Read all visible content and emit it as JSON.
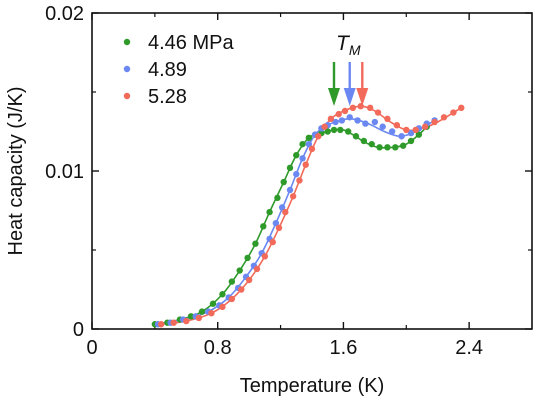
{
  "chart_data": {
    "type": "scatter",
    "xlabel": "Temperature (K)",
    "ylabel": "Heat capacity (J/K)",
    "xlim": [
      0,
      2.8
    ],
    "ylim": [
      0,
      0.02
    ],
    "x_ticks": [
      0,
      0.8,
      1.6,
      2.4
    ],
    "x_tick_labels": [
      "0",
      "0.8",
      "1.6",
      "2.4"
    ],
    "y_ticks": [
      0,
      0.01,
      0.02
    ],
    "y_tick_labels": [
      "0",
      "0.01",
      "0.02"
    ],
    "grid": false,
    "legend_position": "top-left",
    "annotation": {
      "main": "T",
      "sub": "M"
    },
    "series": [
      {
        "name": "4.46 MPa",
        "color": "#2e9a2a",
        "x": [
          0.4,
          0.48,
          0.56,
          0.63,
          0.7,
          0.77,
          0.83,
          0.89,
          0.94,
          0.99,
          1.04,
          1.09,
          1.13,
          1.18,
          1.22,
          1.26,
          1.3,
          1.34,
          1.38,
          1.42,
          1.46,
          1.5,
          1.54,
          1.58,
          1.63,
          1.68,
          1.73,
          1.78,
          1.83,
          1.88,
          1.93,
          1.98,
          2.03,
          2.08,
          2.13
        ],
        "y": [
          0.0003,
          0.0004,
          0.0006,
          0.0008,
          0.0011,
          0.0016,
          0.0022,
          0.003,
          0.0037,
          0.0045,
          0.0054,
          0.0065,
          0.0074,
          0.0083,
          0.0093,
          0.0102,
          0.011,
          0.0117,
          0.0121,
          0.0123,
          0.0124,
          0.0125,
          0.0126,
          0.0126,
          0.0125,
          0.0122,
          0.0119,
          0.0117,
          0.0115,
          0.0115,
          0.0115,
          0.0116,
          0.0119,
          0.0123,
          0.0128
        ],
        "fit_x": [
          0.4,
          0.56,
          0.7,
          0.83,
          0.94,
          1.04,
          1.13,
          1.22,
          1.3,
          1.38,
          1.46,
          1.54,
          1.6,
          1.66,
          1.74,
          1.82,
          1.92,
          2.0,
          2.08,
          2.13
        ],
        "fit_y": [
          0.0003,
          0.0006,
          0.0011,
          0.0022,
          0.0037,
          0.0054,
          0.0074,
          0.0093,
          0.011,
          0.0121,
          0.0124,
          0.0126,
          0.0126,
          0.0123,
          0.0118,
          0.0115,
          0.0115,
          0.0117,
          0.0123,
          0.0128
        ],
        "arrow_x": 1.54
      },
      {
        "name": "4.89",
        "color": "#6b88f2",
        "x": [
          0.42,
          0.5,
          0.58,
          0.66,
          0.74,
          0.81,
          0.87,
          0.93,
          0.98,
          1.03,
          1.08,
          1.13,
          1.17,
          1.21,
          1.26,
          1.3,
          1.34,
          1.38,
          1.42,
          1.46,
          1.5,
          1.55,
          1.59,
          1.64,
          1.69,
          1.74,
          1.8,
          1.85,
          1.91,
          1.97,
          2.03,
          2.08,
          2.13,
          2.18
        ],
        "y": [
          0.0003,
          0.0004,
          0.0006,
          0.0008,
          0.0011,
          0.0015,
          0.002,
          0.0026,
          0.0033,
          0.004,
          0.0048,
          0.0057,
          0.0067,
          0.0077,
          0.0088,
          0.0098,
          0.0108,
          0.0117,
          0.0123,
          0.0127,
          0.0129,
          0.0131,
          0.0132,
          0.0134,
          0.0132,
          0.013,
          0.0131,
          0.0128,
          0.0125,
          0.0122,
          0.0124,
          0.0127,
          0.013,
          0.0132
        ],
        "fit_x": [
          0.42,
          0.58,
          0.74,
          0.87,
          0.98,
          1.08,
          1.17,
          1.26,
          1.34,
          1.42,
          1.5,
          1.58,
          1.64,
          1.7,
          1.78,
          1.86,
          1.96,
          2.06,
          2.18
        ],
        "fit_y": [
          0.0003,
          0.0006,
          0.0011,
          0.002,
          0.0033,
          0.0048,
          0.0067,
          0.0088,
          0.0108,
          0.0123,
          0.0129,
          0.0132,
          0.0133,
          0.0132,
          0.0129,
          0.0125,
          0.0122,
          0.0125,
          0.0132
        ],
        "arrow_x": 1.64
      },
      {
        "name": "5.28",
        "color": "#f26a5a",
        "x": [
          0.44,
          0.52,
          0.6,
          0.68,
          0.76,
          0.83,
          0.89,
          0.95,
          1.0,
          1.05,
          1.1,
          1.15,
          1.19,
          1.23,
          1.28,
          1.32,
          1.36,
          1.4,
          1.44,
          1.48,
          1.52,
          1.57,
          1.61,
          1.66,
          1.71,
          1.77,
          1.82,
          1.88,
          1.94,
          2.0,
          2.06,
          2.12,
          2.18,
          2.24,
          2.3,
          2.35
        ],
        "y": [
          0.0003,
          0.0004,
          0.0005,
          0.0007,
          0.001,
          0.0014,
          0.0019,
          0.0025,
          0.0031,
          0.0038,
          0.0046,
          0.0055,
          0.0064,
          0.0074,
          0.0084,
          0.0094,
          0.0104,
          0.0114,
          0.0122,
          0.0128,
          0.0133,
          0.0136,
          0.0138,
          0.014,
          0.0141,
          0.014,
          0.0137,
          0.0133,
          0.0129,
          0.0126,
          0.0126,
          0.0128,
          0.0131,
          0.0134,
          0.0137,
          0.014
        ],
        "fit_x": [
          0.44,
          0.6,
          0.76,
          0.89,
          1.0,
          1.1,
          1.19,
          1.28,
          1.36,
          1.44,
          1.52,
          1.6,
          1.66,
          1.72,
          1.8,
          1.9,
          2.0,
          2.1,
          2.2,
          2.35
        ],
        "fit_y": [
          0.0003,
          0.0005,
          0.001,
          0.0019,
          0.0031,
          0.0046,
          0.0064,
          0.0084,
          0.0104,
          0.0122,
          0.0133,
          0.0138,
          0.014,
          0.0141,
          0.0138,
          0.0131,
          0.0126,
          0.0127,
          0.0131,
          0.014
        ],
        "arrow_x": 1.72
      }
    ]
  }
}
